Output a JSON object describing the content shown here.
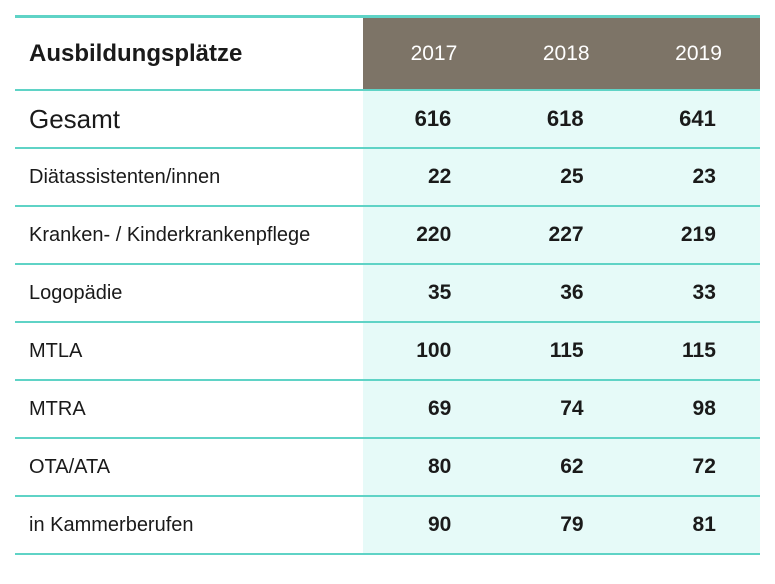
{
  "table": {
    "title": "Ausbildungsplätze",
    "years": [
      "2017",
      "2018",
      "2019"
    ],
    "rows": [
      {
        "label": "Gesamt",
        "values": [
          "616",
          "618",
          "641"
        ]
      },
      {
        "label": "Diätassistenten/innen",
        "values": [
          "22",
          "25",
          "23"
        ]
      },
      {
        "label": "Kranken- / Kinderkrankenpflege",
        "values": [
          "220",
          "227",
          "219"
        ]
      },
      {
        "label": "Logopädie",
        "values": [
          "35",
          "36",
          "33"
        ]
      },
      {
        "label": "MTLA",
        "values": [
          "100",
          "115",
          "115"
        ]
      },
      {
        "label": "MTRA",
        "values": [
          "69",
          "74",
          "98"
        ]
      },
      {
        "label": "OTA/ATA",
        "values": [
          "80",
          "62",
          "72"
        ]
      },
      {
        "label": "in Kammerberufen",
        "values": [
          "90",
          "79",
          "81"
        ]
      }
    ]
  },
  "colors": {
    "accent_line": "#5fd3c6",
    "header_bg": "#7d7467",
    "value_bg": "#e6faf8"
  }
}
